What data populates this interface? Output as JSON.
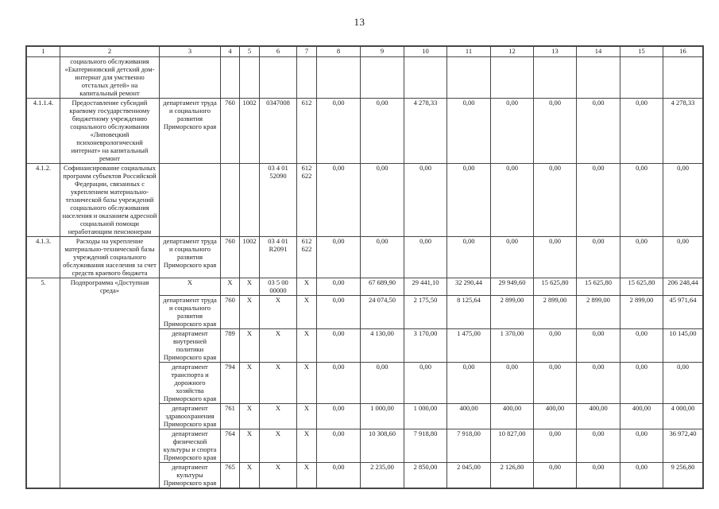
{
  "page": {
    "number": "13"
  },
  "table": {
    "columns": [
      "1",
      "2",
      "3",
      "4",
      "5",
      "6",
      "7",
      "8",
      "9",
      "10",
      "11",
      "12",
      "13",
      "14",
      "15",
      "16"
    ],
    "groups": [
      {
        "num": "",
        "name": "социального обслуживания «Екатериновский детский дом-интернат для умственно отсталых детей» на капитальный ремонт",
        "rows": [
          [
            "",
            "",
            "",
            "",
            "",
            "",
            "",
            "",
            "",
            "",
            "",
            "",
            "",
            ""
          ]
        ]
      },
      {
        "num": "4.1.1.4.",
        "name": "Предоставление субсидий краевому государственному бюджетному учреждению социального обслуживания «Липовецкий психоневрологический интернат» на капитальный ремонт",
        "rows": [
          [
            "департамент труда и социального развития Приморского края",
            "760",
            "1002",
            "0347008",
            "612",
            "0,00",
            "0,00",
            "4 278,33",
            "0,00",
            "0,00",
            "0,00",
            "0,00",
            "0,00",
            "4 278,33"
          ]
        ]
      },
      {
        "num": "4.1.2.",
        "name": "Софинансирование социальных программ субъектов Российской Федерации, связанных с укреплением материально-технической базы учреждений социального обслуживания населения и оказанием адресной социальной помощи неработающим пенсионерам",
        "rows": [
          [
            "",
            "",
            "",
            "03 4 01 52090",
            "612\n622",
            "0,00",
            "0,00",
            "0,00",
            "0,00",
            "0,00",
            "0,00",
            "0,00",
            "0,00",
            "0,00"
          ]
        ]
      },
      {
        "num": "4.1.3.",
        "name": "Расходы на укрепление материально-технической базы учреждений социального обслуживания населения за счет средств краевого бюджета",
        "rows": [
          [
            "департамент труда и социального развития Приморского края",
            "760",
            "1002",
            "03 4 01 R2091",
            "612\n622",
            "0,00",
            "0,00",
            "0,00",
            "0,00",
            "0,00",
            "0,00",
            "0,00",
            "0,00",
            "0,00"
          ]
        ]
      },
      {
        "num": "5.",
        "name": "Подпрограмма «Доступная среда»",
        "rows": [
          [
            "X",
            "X",
            "X",
            "03 5 00 00000",
            "X",
            "0,00",
            "67 689,90",
            "29 441,10",
            "32 290,44",
            "29 949,60",
            "15 625,80",
            "15 625,80",
            "15 625,80",
            "206 248,44"
          ],
          [
            "департамент труда и социального развития Приморского края",
            "760",
            "X",
            "X",
            "X",
            "0,00",
            "24 074,50",
            "2 175,50",
            "8 125,64",
            "2 899,00",
            "2 899,00",
            "2 899,00",
            "2 899,00",
            "45 971,64"
          ],
          [
            "департамент внутренней политики Приморского края",
            "789",
            "X",
            "X",
            "X",
            "0,00",
            "4 130,00",
            "3 170,00",
            "1 475,00",
            "1 370,00",
            "0,00",
            "0,00",
            "0,00",
            "10 145,00"
          ],
          [
            "департамент транспорта и дорожного хозяйства Приморского края",
            "794",
            "X",
            "X",
            "X",
            "0,00",
            "0,00",
            "0,00",
            "0,00",
            "0,00",
            "0,00",
            "0,00",
            "0,00",
            "0,00"
          ],
          [
            "департамент здравоохранения Приморского края",
            "761",
            "X",
            "X",
            "X",
            "0,00",
            "1 000,00",
            "1 000,00",
            "400,00",
            "400,00",
            "400,00",
            "400,00",
            "400,00",
            "4 000,00"
          ],
          [
            "департамент физической культуры и спорта Приморского края",
            "764",
            "X",
            "X",
            "X",
            "0,00",
            "10 308,60",
            "7 918,80",
            "7 918,00",
            "10 827,00",
            "0,00",
            "0,00",
            "0,00",
            "36 972,40"
          ],
          [
            "департамент культуры Приморского края",
            "765",
            "X",
            "X",
            "X",
            "0,00",
            "2 235,00",
            "2 850,00",
            "2 045,00",
            "2 126,80",
            "0,00",
            "0,00",
            "0,00",
            "9 256,80"
          ]
        ]
      }
    ]
  }
}
